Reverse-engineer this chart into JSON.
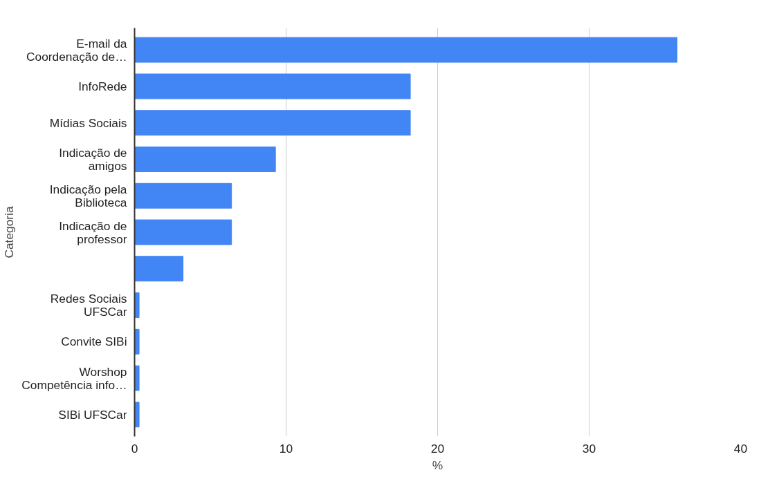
{
  "chart_data": {
    "type": "bar",
    "orientation": "horizontal",
    "xlabel": "%",
    "ylabel": "Categoria",
    "categories": [
      "E-mail da Coordenação de…",
      "InfoRede",
      "Mídias Sociais",
      "Indicação de amigos",
      "Indicação pela Biblioteca",
      "Indicação de professor",
      null,
      "Redes Sociais UFSCar",
      "Convite SIBi",
      "Worshop Competência info…",
      "SIBi UFSCar"
    ],
    "values": [
      35.8,
      18.2,
      18.2,
      9.3,
      6.4,
      6.4,
      3.2,
      0.3,
      0.3,
      0.3,
      0.3
    ],
    "color": "#4285f4",
    "xlim": [
      0,
      40
    ],
    "xticks": [
      0,
      10,
      20,
      30,
      40
    ],
    "grid": "x"
  }
}
